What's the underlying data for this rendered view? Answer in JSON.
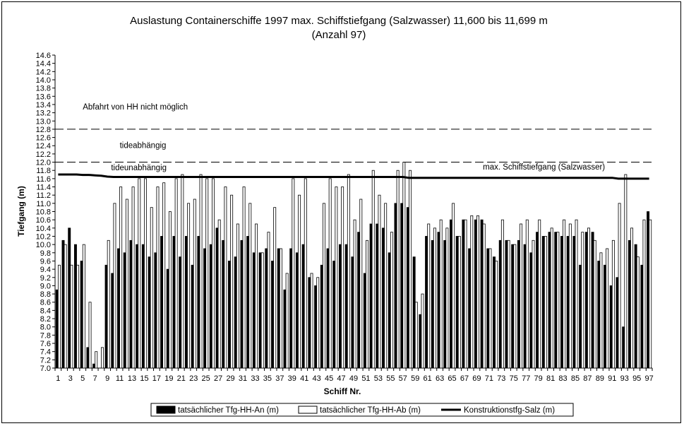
{
  "chart_data": {
    "type": "bar",
    "title_line1": "Auslastung Containerschiffe 1997 max. Schiffstiefgang (Salzwasser) 11,600 bis 11,699 m",
    "title_line2": "(Anzahl 97)",
    "xlabel": "Schiff Nr.",
    "ylabel": "Tiefgang (m)",
    "ylim": [
      7.0,
      14.6
    ],
    "ytick_step": 0.2,
    "grid": false,
    "legend_position": "bottom",
    "ship_numbers": [
      1,
      2,
      3,
      4,
      5,
      6,
      7,
      8,
      9,
      10,
      11,
      12,
      13,
      14,
      15,
      16,
      17,
      18,
      19,
      20,
      21,
      22,
      23,
      24,
      25,
      26,
      27,
      28,
      29,
      30,
      31,
      32,
      33,
      34,
      35,
      36,
      37,
      38,
      39,
      40,
      41,
      42,
      43,
      44,
      45,
      46,
      47,
      48,
      49,
      50,
      51,
      52,
      53,
      54,
      55,
      56,
      57,
      58,
      59,
      60,
      61,
      62,
      63,
      64,
      65,
      66,
      67,
      68,
      69,
      70,
      71,
      72,
      73,
      74,
      75,
      76,
      77,
      78,
      79,
      80,
      81,
      82,
      83,
      84,
      85,
      86,
      87,
      88,
      89,
      90,
      91,
      92,
      93,
      94,
      95,
      96,
      97
    ],
    "series": [
      {
        "name": "tatsächlicher Tfg-HH-An (m)",
        "style": "filled",
        "values": [
          8.9,
          10.1,
          10.4,
          10.0,
          9.6,
          7.5,
          7.1,
          null,
          9.5,
          9.3,
          9.9,
          9.8,
          10.1,
          10.0,
          10.0,
          9.7,
          9.8,
          10.2,
          9.4,
          10.2,
          9.7,
          10.2,
          9.5,
          10.2,
          9.9,
          10.0,
          10.4,
          10.1,
          9.6,
          9.7,
          10.1,
          10.2,
          9.8,
          9.8,
          9.9,
          9.6,
          9.9,
          8.9,
          9.9,
          9.8,
          10.0,
          9.2,
          9.0,
          9.5,
          9.9,
          9.6,
          10.0,
          10.0,
          9.7,
          10.3,
          9.3,
          10.5,
          10.5,
          10.4,
          9.8,
          11.0,
          11.0,
          10.9,
          9.7,
          8.3,
          10.2,
          10.1,
          10.3,
          10.1,
          10.6,
          10.2,
          10.6,
          9.9,
          10.6,
          10.6,
          9.9,
          9.7,
          10.1,
          10.1,
          10.0,
          10.1,
          10.0,
          9.8,
          10.3,
          10.2,
          10.3,
          10.3,
          10.2,
          10.2,
          10.2,
          9.5,
          10.3,
          10.3,
          9.6,
          9.5,
          9.0,
          9.2,
          8.0,
          10.1,
          10.0,
          9.5,
          10.8
        ],
        "color": "#000000"
      },
      {
        "name": "tatsächlicher Tfg-HH-Ab (m)",
        "style": "hollow",
        "values": [
          9.5,
          10.0,
          9.5,
          9.5,
          10.0,
          8.6,
          7.4,
          7.5,
          10.1,
          11.0,
          11.4,
          11.1,
          11.4,
          11.6,
          11.6,
          10.9,
          11.4,
          11.5,
          10.8,
          11.6,
          11.7,
          11.0,
          11.1,
          11.7,
          11.6,
          11.6,
          10.6,
          11.4,
          11.2,
          10.5,
          11.4,
          11.0,
          10.5,
          9.8,
          10.3,
          10.9,
          9.9,
          9.3,
          11.6,
          11.2,
          11.6,
          9.3,
          9.2,
          11.0,
          11.6,
          11.4,
          11.4,
          11.7,
          10.6,
          11.1,
          10.1,
          11.8,
          11.2,
          11.0,
          10.3,
          11.8,
          12.0,
          11.8,
          8.6,
          8.8,
          10.5,
          10.4,
          10.6,
          10.4,
          11.0,
          10.2,
          10.6,
          10.7,
          10.7,
          10.5,
          9.9,
          9.6,
          10.6,
          10.1,
          10.0,
          10.5,
          10.6,
          10.1,
          10.6,
          10.2,
          10.4,
          10.3,
          10.6,
          10.5,
          10.6,
          10.3,
          10.4,
          10.1,
          9.8,
          9.9,
          10.1,
          11.0,
          11.7,
          10.4,
          9.7,
          10.6,
          10.6
        ],
        "color": "#ffffff"
      },
      {
        "name": "Konstruktionstfg-Salz (m)",
        "style": "line",
        "values": [
          11.7,
          11.7,
          11.7,
          11.7,
          11.69,
          11.69,
          11.68,
          11.67,
          11.65,
          11.64,
          11.64,
          11.64,
          11.64,
          11.64,
          11.64,
          11.64,
          11.64,
          11.64,
          11.64,
          11.64,
          11.64,
          11.64,
          11.64,
          11.64,
          11.64,
          11.64,
          11.64,
          11.64,
          11.64,
          11.64,
          11.64,
          11.64,
          11.64,
          11.64,
          11.64,
          11.64,
          11.64,
          11.64,
          11.64,
          11.64,
          11.64,
          11.64,
          11.64,
          11.64,
          11.64,
          11.64,
          11.64,
          11.64,
          11.64,
          11.64,
          11.64,
          11.64,
          11.64,
          11.64,
          11.64,
          11.64,
          11.64,
          11.62,
          11.62,
          11.62,
          11.62,
          11.62,
          11.62,
          11.62,
          11.62,
          11.62,
          11.62,
          11.62,
          11.62,
          11.62,
          11.62,
          11.62,
          11.62,
          11.62,
          11.62,
          11.62,
          11.62,
          11.62,
          11.62,
          11.62,
          11.62,
          11.62,
          11.62,
          11.62,
          11.62,
          11.62,
          11.62,
          11.62,
          11.62,
          11.62,
          11.62,
          11.6,
          11.6,
          11.6,
          11.6,
          11.6,
          11.6
        ],
        "color": "#000000"
      }
    ],
    "reference_lines": [
      {
        "value": 12.8,
        "style": "dashed"
      },
      {
        "value": 12.0,
        "style": "dashed"
      }
    ],
    "annotations": [
      {
        "id": "abfahrt",
        "text": "Abfahrt von HH nicht möglich",
        "y": 13.28,
        "x_ship": 5
      },
      {
        "id": "tideab",
        "text": "tideabhängig",
        "y": 12.34,
        "x_ship": 11
      },
      {
        "id": "tideun",
        "text": "tideunabhängig",
        "y": 11.8,
        "x_ship": 9.6
      },
      {
        "id": "maxsalz",
        "text": "max. Schiffstiefgang (Salzwasser)",
        "y": 11.82,
        "x_ship": 70
      }
    ]
  }
}
